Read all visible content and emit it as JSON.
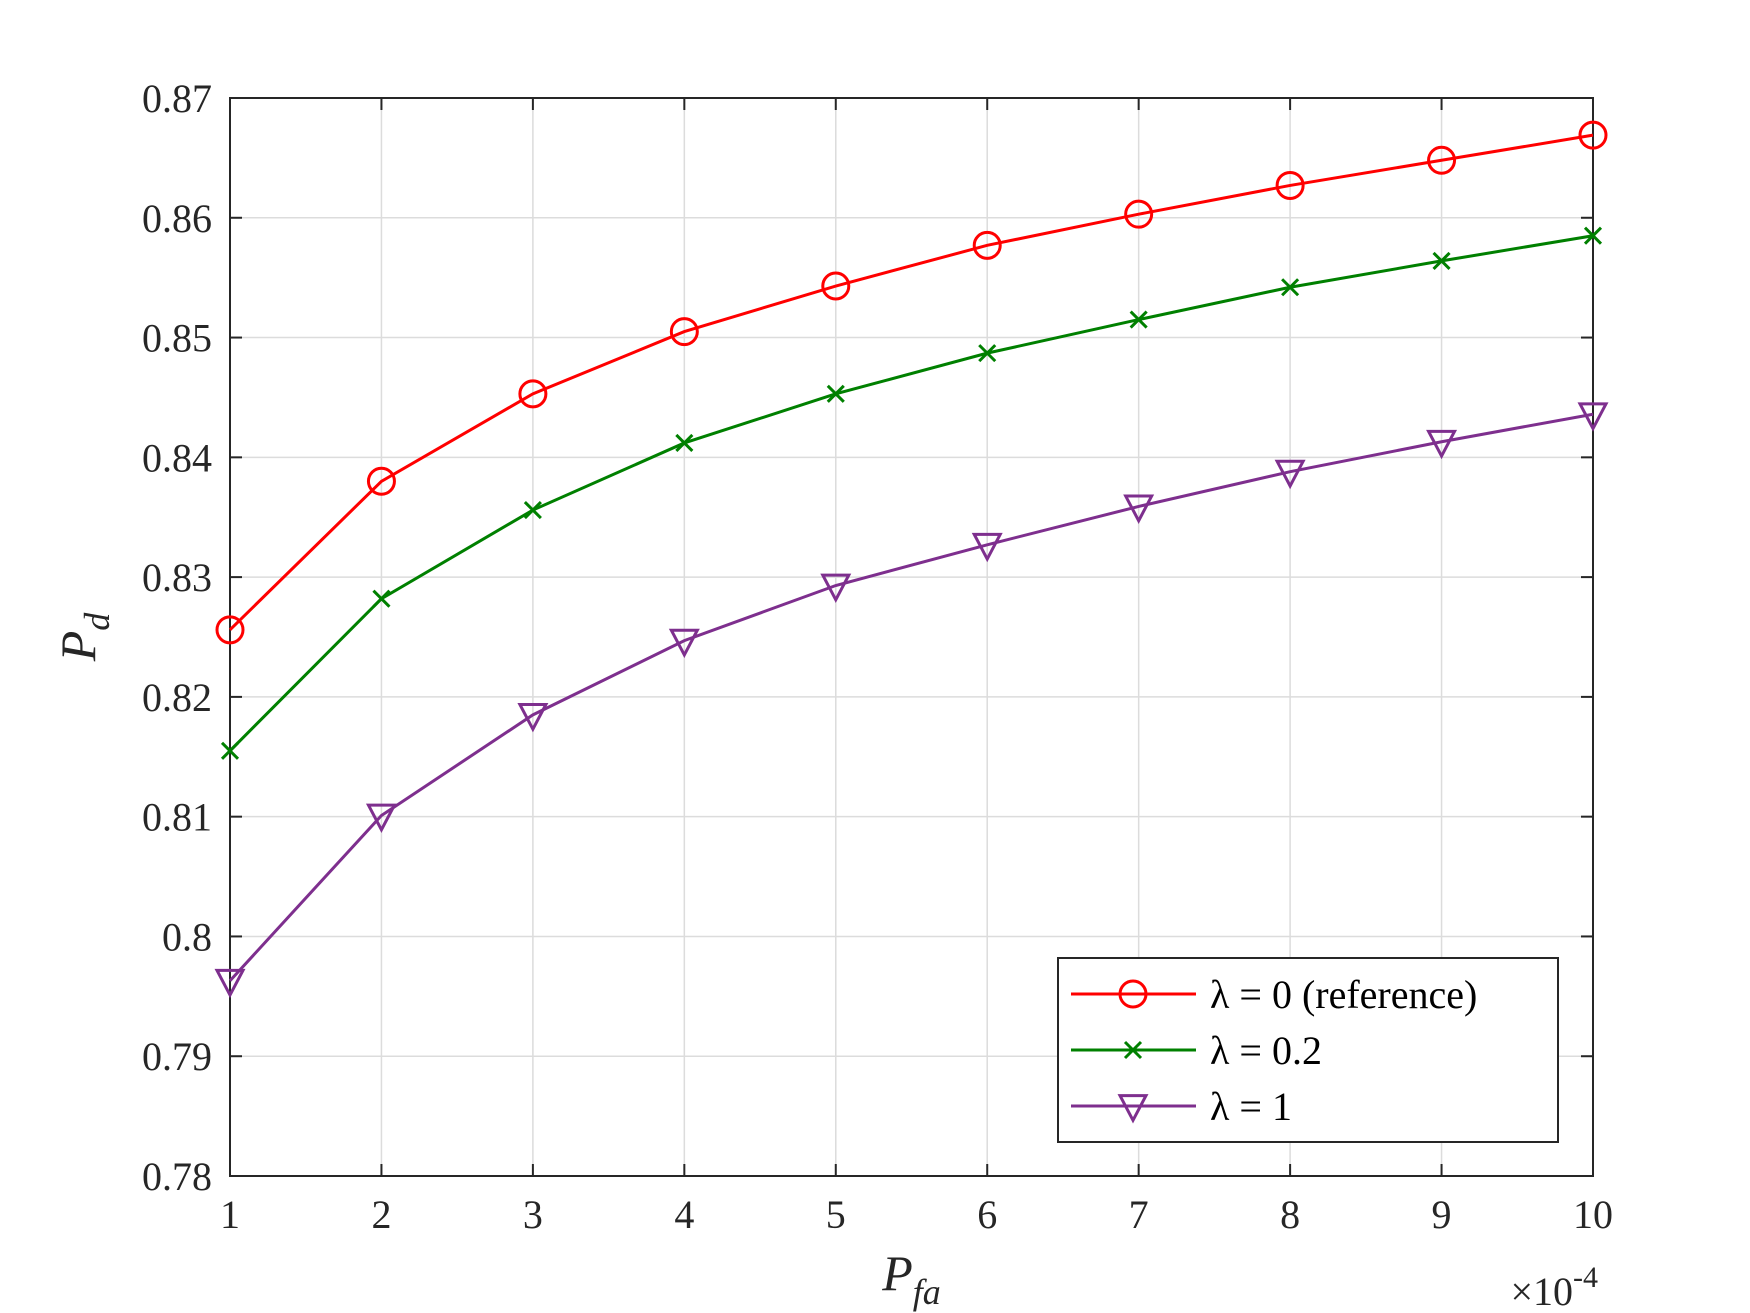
{
  "chart_data": {
    "type": "line",
    "x": [
      1,
      2,
      3,
      4,
      5,
      6,
      7,
      8,
      9,
      10
    ],
    "xlim": [
      1,
      10
    ],
    "ylim": [
      0.78,
      0.87
    ],
    "grid": true,
    "xlabel": {
      "main": "P",
      "sub": "fa"
    },
    "ylabel": {
      "main": "P",
      "sub": "d"
    },
    "x_multiplier": {
      "base": "×10",
      "exponent": "-4"
    },
    "x_ticks": [
      "1",
      "2",
      "3",
      "4",
      "5",
      "6",
      "7",
      "8",
      "9",
      "10"
    ],
    "y_ticks": [
      "0.78",
      "0.79",
      "0.8",
      "0.81",
      "0.82",
      "0.83",
      "0.84",
      "0.85",
      "0.86",
      "0.87"
    ],
    "legend_position": "bottom-right",
    "series": [
      {
        "name": "λ = 0 (reference)",
        "color": "#ff0000",
        "marker": "circle",
        "values": [
          0.8256,
          0.838,
          0.8453,
          0.8505,
          0.8543,
          0.8577,
          0.8603,
          0.8627,
          0.8648,
          0.8669
        ]
      },
      {
        "name": "λ = 0.2",
        "color": "#008000",
        "marker": "x",
        "values": [
          0.8155,
          0.8282,
          0.8356,
          0.8412,
          0.8453,
          0.8487,
          0.8515,
          0.8542,
          0.8564,
          0.8585
        ]
      },
      {
        "name": "λ = 1",
        "color": "#7e2f8e",
        "marker": "triangle-down",
        "values": [
          0.7963,
          0.8101,
          0.8185,
          0.8247,
          0.8293,
          0.8327,
          0.8359,
          0.8388,
          0.8413,
          0.8436
        ]
      }
    ]
  }
}
